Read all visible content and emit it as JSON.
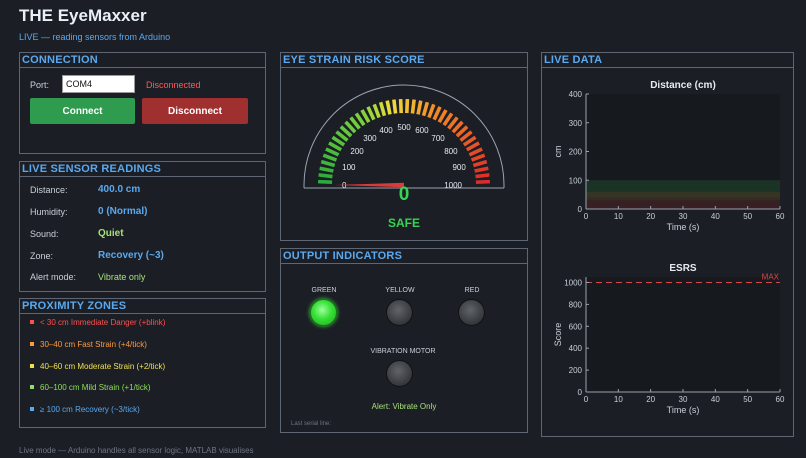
{
  "app": {
    "title": "THE EyeMaxxer",
    "subtitle": "LIVE — reading sensors from Arduino",
    "footer": "Live mode — Arduino handles all sensor logic, MATLAB visualises"
  },
  "connection": {
    "title": "CONNECTION",
    "port_label": "Port:",
    "port_value": "COM4",
    "status": "Disconnected",
    "status_color": "#ff5a5a",
    "connect_label": "Connect",
    "connect_color": "#2e9b4f",
    "disconnect_label": "Disconnect",
    "disconnect_color": "#a03030"
  },
  "readings": {
    "title": "LIVE SENSOR READINGS",
    "rows": [
      {
        "label": "Distance:",
        "value": "400.0 cm"
      },
      {
        "label": "Humidity:",
        "value": "0  (Normal)"
      },
      {
        "label": "Sound:",
        "value": "Quiet",
        "color": "#a6e07a"
      },
      {
        "label": "Zone:",
        "value": "Recovery (~3)"
      },
      {
        "label": "Alert mode:",
        "value": "Vibrate only",
        "color": "#a6e07a"
      }
    ]
  },
  "zones": {
    "title": "PROXIMITY ZONES",
    "items": [
      {
        "text": "< 30 cm    Immediate Danger   (+blink)",
        "color": "#ff4f4f"
      },
      {
        "text": "30–40 cm    Fast Strain   (+4/tick)",
        "color": "#ff9a3d"
      },
      {
        "text": "40–60 cm    Moderate Strain   (+2/tick)",
        "color": "#f0e050"
      },
      {
        "text": "60–100 cm    Mild Strain   (+1/tick)",
        "color": "#8fe05a"
      },
      {
        "text": "≥ 100 cm    Recovery   (~3/tick)",
        "color": "#5aa9f0"
      }
    ]
  },
  "gauge": {
    "title": "EYE STRAIN RISK SCORE",
    "ticks": [
      "0",
      "100",
      "200",
      "300",
      "400",
      "500",
      "600",
      "700",
      "800",
      "900",
      "1000"
    ],
    "value": 0,
    "value_text": "0",
    "max": 1000,
    "status": "SAFE",
    "value_color": "#39d353"
  },
  "indicators": {
    "title": "OUTPUT INDICATORS",
    "green_label": "GREEN",
    "yellow_label": "YELLOW",
    "red_label": "RED",
    "green_on": true,
    "yellow_on": false,
    "red_on": false,
    "motor_label": "VIBRATION MOTOR",
    "motor_on": false,
    "alert_text": "Alert: Vibrate Only",
    "serial_label": "Last serial line:"
  },
  "live_data": {
    "title": "LIVE DATA"
  },
  "chart_data": [
    {
      "type": "area",
      "title": "Distance (cm)",
      "xlabel": "Time (s)",
      "ylabel": "cm",
      "xlim": [
        0,
        60
      ],
      "ylim": [
        0,
        400
      ],
      "xticks": [
        "0",
        "10",
        "20",
        "30",
        "40",
        "50",
        "60"
      ],
      "yticks": [
        "0",
        "100",
        "200",
        "300",
        "400"
      ],
      "bands": [
        {
          "from": 0,
          "to": 30,
          "color": "#ff4f4f"
        },
        {
          "from": 30,
          "to": 40,
          "color": "#ff9a3d"
        },
        {
          "from": 40,
          "to": 60,
          "color": "#f0e050"
        },
        {
          "from": 60,
          "to": 100,
          "color": "#39d353"
        }
      ],
      "series": []
    },
    {
      "type": "line",
      "title": "ESRS",
      "xlabel": "Time (s)",
      "ylabel": "Score",
      "xlim": [
        0,
        60
      ],
      "ylim": [
        0,
        1050
      ],
      "xticks": [
        "0",
        "10",
        "20",
        "30",
        "40",
        "50",
        "60"
      ],
      "yticks": [
        "0",
        "200",
        "400",
        "600",
        "800",
        "1000"
      ],
      "threshold": {
        "value": 1000,
        "label": "MAX",
        "color": "#d94848"
      },
      "series": []
    }
  ]
}
